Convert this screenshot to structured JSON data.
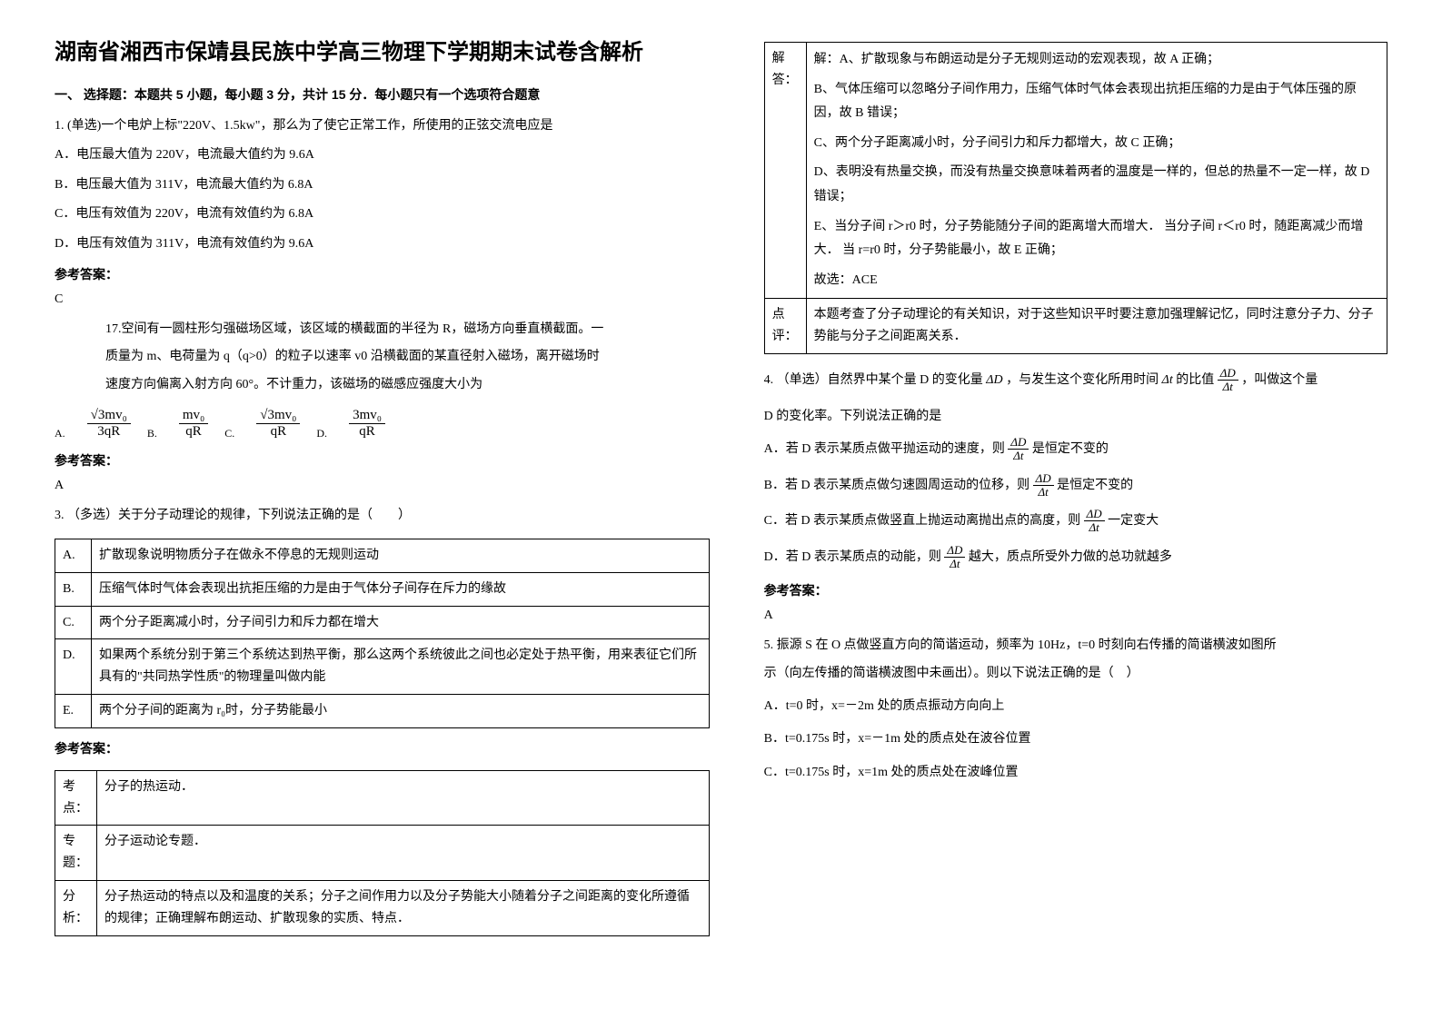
{
  "title": "湖南省湘西市保靖县民族中学高三物理下学期期末试卷含解析",
  "section1": "一、 选择题：本题共 5 小题，每小题 3 分，共计 15 分．每小题只有一个选项符合题意",
  "q1": {
    "stem": "1. (单选)一个电炉上标\"220V、1.5kw\"，那么为了使它正常工作，所使用的正弦交流电应是",
    "A": "A．电压最大值为 220V，电流最大值约为 9.6A",
    "B": "B．电压最大值为 311V，电流最大值约为 6.8A",
    "C": "C．电压有效值为 220V，电流有效值约为 6.8A",
    "D": "D．电压有效值为 311V，电流有效值约为 9.6A",
    "ansLabel": "参考答案：",
    "ans": "C"
  },
  "q17": {
    "stem1": "17.空间有一圆柱形匀强磁场区域，该区域的横截面的半径为 R，磁场方向垂直横截面。一",
    "stem2": "质量为 m、电荷量为 q（q>0）的粒子以速率 v0 沿横截面的某直径射入磁场，离开磁场时",
    "stem3": "速度方向偏离入射方向 60°。不计重力，该磁场的磁感应强度大小为",
    "labels": {
      "A": "A.",
      "B": "B.",
      "C": "C.",
      "D": "D."
    },
    "fracs": {
      "A": {
        "num": "√3mv₀",
        "den": "3qR"
      },
      "B": {
        "num": "mv₀",
        "den": "qR"
      },
      "C": {
        "num": "√3mv₀",
        "den": "qR"
      },
      "D": {
        "num": "3mv₀",
        "den": "qR"
      }
    },
    "ansLabel": "参考答案：",
    "ans": "A"
  },
  "q3": {
    "stem": "3. （多选）关于分子动理论的规律，下列说法正确的是（　　）",
    "rows": {
      "A": {
        "l": "A.",
        "t": "扩散现象说明物质分子在做永不停息的无规则运动"
      },
      "B": {
        "l": "B.",
        "t": "压缩气体时气体会表现出抗拒压缩的力是由于气体分子间存在斥力的缘故"
      },
      "C": {
        "l": "C.",
        "t": "两个分子距离减小时，分子间引力和斥力都在增大"
      },
      "D": {
        "l": "D.",
        "t": "如果两个系统分别于第三个系统达到热平衡，那么这两个系统彼此之间也必定处于热平衡，用来表征它们所具有的\"共同热学性质\"的物理量叫做内能"
      },
      "E": {
        "l": "E.",
        "t": "两个分子间的距离为 r₀时，分子势能最小"
      }
    },
    "ansLabel": "参考答案：",
    "analysis": {
      "kd": {
        "l": "考点：",
        "t": "分子的热运动．"
      },
      "zt": {
        "l": "专题：",
        "t": "分子运动论专题．"
      },
      "fx": {
        "l": "分析：",
        "t": "分子热运动的特点以及和温度的关系；分子之间作用力以及分子势能大小随着分子之间距离的变化所遵循的规律；正确理解布朗运动、扩散现象的实质、特点．"
      }
    }
  },
  "right": {
    "jd": {
      "l": "解答：",
      "p1": "解：A、扩散现象与布朗运动是分子无规则运动的宏观表现，故 A 正确；",
      "p2": "B、气体压缩可以忽略分子间作用力，压缩气体时气体会表现出抗拒压缩的力是由于气体压强的原因，故 B 错误；",
      "p3": "C、两个分子距离减小时，分子间引力和斥力都增大，故 C 正确；",
      "p4": "D、表明没有热量交换，而没有热量交换意味着两者的温度是一样的，但总的热量不一定一样，故 D 错误；",
      "p5": "E、当分子间 r＞r0 时，分子势能随分子间的距离增大而增大．  当分子间 r＜r0 时，随距离减少而增大．  当 r=r0 时，分子势能最小，故 E 正确；",
      "p6": "故选：ACE"
    },
    "dp": {
      "l": "点评：",
      "t": "本题考查了分子动理论的有关知识，对于这些知识平时要注意加强理解记忆，同时注意分子力、分子势能与分子之间距离关系．"
    }
  },
  "q4": {
    "lead1": "4. （单选）自然界中某个量 D 的变化量",
    "dd": "ΔD",
    "mid1": "，与发生这个变化所用时间",
    "dt": "Δt",
    "mid2": " 的比值 ",
    "tail": " ，叫做这个量",
    "line2": "D 的变化率。下列说法正确的是",
    "A1": "A．若 D 表示某质点做平抛运动的速度，则 ",
    "A2": " 是恒定不变的",
    "B1": "B．若 D 表示某质点做匀速圆周运动的位移，则 ",
    "B2": " 是恒定不变的",
    "C1": "C．若 D 表示某质点做竖直上抛运动离抛出点的高度，则 ",
    "C2": " 一定变大",
    "D1": "D．若 D 表示某质点的动能，则 ",
    "D2": " 越大，质点所受外力做的总功就越多",
    "ansLabel": "参考答案：",
    "ans": "A"
  },
  "q5": {
    "l1": "5. 振源 S 在 O 点做竖直方向的简谐运动，频率为 10Hz，t=0 时刻向右传播的简谐横波如图所",
    "l2": "示（向左传播的简谐横波图中未画出）。则以下说法正确的是（　）",
    "A": "A．t=0 时，x=－2m 处的质点振动方向向上",
    "B": "B．t=0.175s 时，x=－1m 处的质点处在波谷位置",
    "C": "C．t=0.175s 时，x=1m 处的质点处在波峰位置"
  }
}
